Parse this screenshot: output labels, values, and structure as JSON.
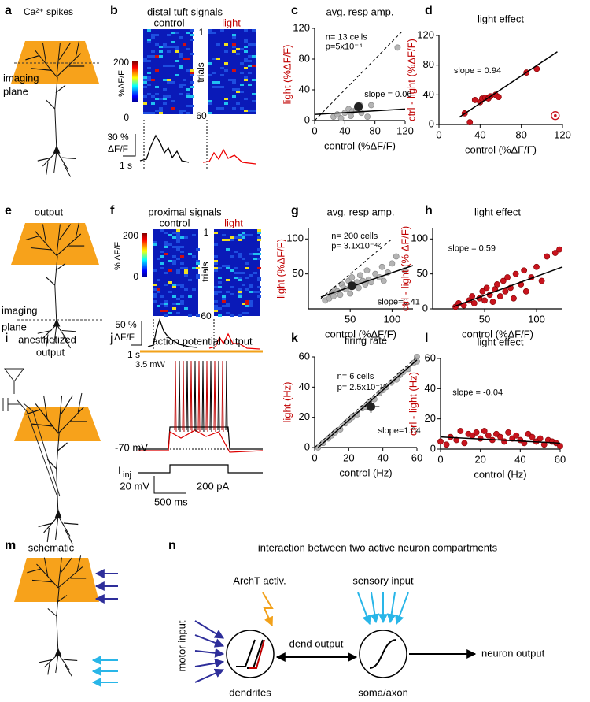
{
  "figure": {
    "panel_labels": [
      "a",
      "b",
      "c",
      "d",
      "e",
      "f",
      "g",
      "h",
      "i",
      "j",
      "k",
      "l",
      "m",
      "n"
    ],
    "a": {
      "caption": "Ca²⁺ spikes",
      "imaging": "imaging",
      "plane": "plane"
    },
    "b": {
      "title": "distal tuft signals",
      "control": "control",
      "light": "light",
      "trial_first": "1",
      "trials": "trials",
      "trial_last": "60",
      "cbar_max": "200",
      "cbar_unit": "%ΔF/F",
      "cbar_min": "0",
      "scale_pct": "30 %",
      "scale_unit": "ΔF/F",
      "scale_time": "1 s"
    },
    "e": {
      "caption": "output",
      "imaging": "imaging",
      "plane": "plane"
    },
    "f": {
      "title": "proximal signals",
      "control": "control",
      "light": "light",
      "trial_first": "1",
      "trials": "trials",
      "trial_last": "60",
      "cbar_max": "200",
      "cbar_unit": "% ΔF/F",
      "cbar_min": "0",
      "scale_pct": "50 %",
      "scale_unit": "ΔF/F",
      "scale_time": "1 s"
    },
    "i": {
      "caption1": "anesthetized",
      "caption2": "output"
    },
    "j": {
      "title": "action potential output",
      "power": "3.5 mW",
      "rest": "-70 mV",
      "iinj": "I",
      "iinj_sub": "inj",
      "scale_mv": "20 mV",
      "scale_ms": "500 ms",
      "scale_pa": "200 pA"
    },
    "m": {
      "caption": "schematic"
    },
    "n": {
      "title": "interaction between two active neuron compartments",
      "archt": "ArchT activ.",
      "sensory": "sensory input",
      "motor": "motor input",
      "dend_output": "dend output",
      "neuron_output": "neuron output",
      "dendrites": "dendrites",
      "soma": "soma/axon"
    }
  },
  "chart_data": [
    {
      "type": "scatter",
      "title": "avg. resp amp.",
      "x_label": "control (%ΔF/F)",
      "y_label": "light (%ΔF/F)",
      "xlim": [
        0,
        120
      ],
      "ylim": [
        0,
        120
      ],
      "xticks": [
        0,
        40,
        80,
        120
      ],
      "yticks": [
        0,
        40,
        80,
        120
      ],
      "annotations": [
        "n= 13 cells",
        "p=5x10⁻⁴",
        "slope = 0.06"
      ],
      "series": [
        {
          "color": "#b4b4b4",
          "x": [
            25,
            30,
            35,
            40,
            45,
            48,
            50,
            55,
            60,
            62,
            70,
            75,
            110
          ],
          "values": [
            5,
            8,
            3,
            10,
            15,
            6,
            12,
            14,
            20,
            10,
            5,
            20,
            95
          ]
        }
      ],
      "mean": {
        "x": 58,
        "y": 18,
        "xerr": 5,
        "yerr": 5
      },
      "lines": [
        {
          "style": "dashed",
          "x": [
            0,
            115
          ],
          "values": [
            0,
            115
          ]
        },
        {
          "style": "solid",
          "x": [
            0,
            120
          ],
          "values": [
            8,
            15
          ]
        }
      ]
    },
    {
      "type": "scatter",
      "title": "light effect",
      "x_label": "control (%ΔF/F)",
      "y_label": "ctrl - light (%ΔF/F)",
      "xlim": [
        0,
        120
      ],
      "ylim": [
        0,
        120
      ],
      "xticks": [
        0,
        40,
        80,
        120
      ],
      "yticks": [
        0,
        40,
        80,
        120
      ],
      "annotations": [
        "slope = 0.94"
      ],
      "series": [
        {
          "color": "#c8141e",
          "x": [
            25,
            30,
            35,
            40,
            42,
            45,
            48,
            50,
            55,
            58,
            85,
            95
          ],
          "values": [
            15,
            3,
            33,
            30,
            35,
            36,
            35,
            38,
            40,
            37,
            70,
            75
          ]
        },
        {
          "color": "#c8141e",
          "marker": "ring",
          "x": [
            113
          ],
          "values": [
            12
          ]
        }
      ],
      "lines": [
        {
          "style": "solid",
          "x": [
            20,
            115
          ],
          "values": [
            10,
            98
          ]
        }
      ]
    },
    {
      "type": "scatter",
      "title": "avg. resp amp.",
      "x_label": "control (%ΔF/F)",
      "y_label": "light (%ΔF/F)",
      "xlim": [
        0,
        125
      ],
      "ylim": [
        0,
        115
      ],
      "xticks": [
        50,
        100
      ],
      "yticks": [
        50,
        100
      ],
      "annotations": [
        "n= 200 cells",
        "p= 3.1x10⁻⁴²",
        "slope=0.41"
      ],
      "series": [
        {
          "color": "#b4b4b4",
          "x": [
            20,
            25,
            28,
            30,
            32,
            35,
            38,
            40,
            42,
            45,
            48,
            50,
            52,
            55,
            58,
            60,
            62,
            65,
            68,
            70,
            72,
            75,
            80,
            85,
            88,
            90,
            95,
            100,
            105,
            115
          ],
          "values": [
            12,
            15,
            22,
            18,
            28,
            25,
            20,
            35,
            30,
            28,
            40,
            22,
            45,
            33,
            38,
            30,
            48,
            40,
            35,
            55,
            42,
            38,
            50,
            45,
            60,
            40,
            52,
            65,
            75,
            55
          ]
        }
      ],
      "mean": {
        "x": 52,
        "y": 33,
        "xerr": 3,
        "yerr": 3
      },
      "lines": [
        {
          "style": "dashed",
          "x": [
            15,
            100
          ],
          "values": [
            15,
            100
          ]
        },
        {
          "style": "solid",
          "x": [
            15,
            125
          ],
          "values": [
            17,
            62
          ]
        }
      ]
    },
    {
      "type": "scatter",
      "title": "light effect",
      "x_label": "control (%ΔF/F)",
      "y_label": "ctrl - light (% ΔF/F)",
      "xlim": [
        0,
        125
      ],
      "ylim": [
        0,
        115
      ],
      "xticks": [
        50,
        100
      ],
      "yticks": [
        0,
        50,
        100
      ],
      "annotations": [
        "slope = 0.59"
      ],
      "series": [
        {
          "color": "#c8141e",
          "x": [
            22,
            25,
            30,
            35,
            38,
            40,
            45,
            48,
            50,
            52,
            55,
            58,
            60,
            62,
            65,
            68,
            70,
            72,
            75,
            78,
            80,
            85,
            88,
            90,
            95,
            100,
            105,
            110,
            118,
            122
          ],
          "values": [
            3,
            8,
            5,
            12,
            18,
            8,
            15,
            25,
            12,
            30,
            20,
            10,
            28,
            35,
            18,
            40,
            25,
            45,
            30,
            15,
            50,
            35,
            55,
            25,
            45,
            60,
            40,
            75,
            80,
            85
          ]
        }
      ],
      "lines": [
        {
          "style": "solid",
          "x": [
            20,
            125
          ],
          "values": [
            3,
            60
          ]
        }
      ]
    },
    {
      "type": "scatter",
      "title": "firing rate",
      "x_label": "control (Hz)",
      "y_label": "light (Hz)",
      "xlim": [
        0,
        60
      ],
      "ylim": [
        0,
        60
      ],
      "xticks": [
        0,
        20,
        40,
        60
      ],
      "yticks": [
        0,
        20,
        40,
        60
      ],
      "annotations": [
        "n= 6 cells",
        "p= 2.5x10⁻¹⁸",
        "slope=1.04"
      ],
      "series": [
        {
          "color": "#b4b4b4",
          "x": [
            2,
            5,
            8,
            10,
            12,
            15,
            18,
            20,
            22,
            25,
            28,
            30,
            32,
            35,
            38,
            40,
            42,
            45,
            48,
            50,
            52,
            55,
            58,
            60,
            60
          ],
          "values": [
            0,
            3,
            6,
            8,
            10,
            12,
            16,
            18,
            20,
            22,
            26,
            27,
            30,
            32,
            36,
            38,
            40,
            43,
            45,
            48,
            50,
            52,
            56,
            60,
            57
          ]
        }
      ],
      "mean": {
        "x": 33,
        "y": 27,
        "xerr": 5,
        "yerr": 4
      },
      "lines": [
        {
          "style": "dashed",
          "x": [
            0,
            60
          ],
          "values": [
            0,
            60
          ]
        },
        {
          "style": "solid",
          "x": [
            2,
            60
          ],
          "values": [
            0,
            58
          ]
        }
      ]
    },
    {
      "type": "scatter",
      "title": "light effect",
      "x_label": "control (Hz)",
      "y_label": "ctrl - light (Hz)",
      "xlim": [
        0,
        60
      ],
      "ylim": [
        0,
        60
      ],
      "xticks": [
        0,
        20,
        40,
        60
      ],
      "yticks": [
        0,
        20,
        40,
        60
      ],
      "annotations": [
        "slope = -0.04"
      ],
      "series": [
        {
          "color": "#c8141e",
          "x": [
            0,
            3,
            5,
            8,
            10,
            12,
            14,
            16,
            18,
            20,
            22,
            24,
            26,
            28,
            30,
            32,
            34,
            36,
            38,
            40,
            42,
            44,
            46,
            48,
            50,
            52,
            54,
            56,
            58,
            60
          ],
          "values": [
            5,
            3,
            8,
            6,
            12,
            4,
            10,
            9,
            11,
            7,
            12,
            9,
            6,
            10,
            8,
            5,
            11,
            7,
            9,
            6,
            4,
            10,
            8,
            5,
            7,
            3,
            6,
            5,
            4,
            2
          ]
        }
      ],
      "lines": [
        {
          "style": "solid",
          "x": [
            0,
            60
          ],
          "values": [
            8,
            4
          ]
        }
      ]
    }
  ]
}
